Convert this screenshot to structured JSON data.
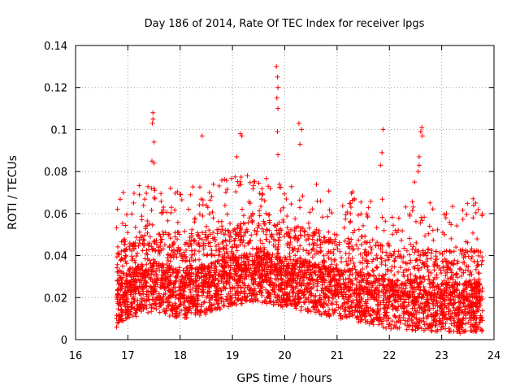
{
  "chart_data": {
    "type": "scatter",
    "title": "Day 186 of 2014, Rate Of TEC Index for receiver lpgs",
    "xlabel": "GPS time / hours",
    "ylabel": "ROTI / TECUs",
    "xlim": [
      16,
      24
    ],
    "ylim": [
      0,
      0.14
    ],
    "xticks": [
      16,
      17,
      18,
      19,
      20,
      21,
      22,
      23,
      24
    ],
    "yticks": [
      0,
      0.02,
      0.04,
      0.06,
      0.08,
      0.1,
      0.12,
      0.14
    ],
    "xtick_labels": [
      "16",
      "17",
      "18",
      "19",
      "20",
      "21",
      "22",
      "23",
      "24"
    ],
    "ytick_labels": [
      "0",
      "0.02",
      "0.04",
      "0.06",
      "0.08",
      "0.1",
      "0.12",
      "0.14"
    ],
    "grid": true,
    "marker": "+",
    "color": "#ff0000",
    "time_range": [
      16.78,
      23.78
    ],
    "baseline_envelope": [
      [
        16.8,
        0.018
      ],
      [
        17.0,
        0.022
      ],
      [
        17.5,
        0.025
      ],
      [
        18.0,
        0.022
      ],
      [
        18.5,
        0.024
      ],
      [
        19.0,
        0.028
      ],
      [
        19.5,
        0.03
      ],
      [
        20.0,
        0.027
      ],
      [
        20.5,
        0.025
      ],
      [
        21.0,
        0.022
      ],
      [
        21.5,
        0.02
      ],
      [
        22.0,
        0.017
      ],
      [
        22.5,
        0.016
      ],
      [
        23.0,
        0.015
      ],
      [
        23.5,
        0.015
      ],
      [
        23.78,
        0.015
      ]
    ],
    "peak_points": [
      {
        "x": 17.48,
        "y": 0.108
      },
      {
        "x": 17.48,
        "y": 0.105
      },
      {
        "x": 17.47,
        "y": 0.103
      },
      {
        "x": 17.5,
        "y": 0.094
      },
      {
        "x": 17.46,
        "y": 0.085
      },
      {
        "x": 17.5,
        "y": 0.084
      },
      {
        "x": 17.45,
        "y": 0.072
      },
      {
        "x": 17.5,
        "y": 0.072
      },
      {
        "x": 18.42,
        "y": 0.097
      },
      {
        "x": 19.15,
        "y": 0.098
      },
      {
        "x": 19.18,
        "y": 0.097
      },
      {
        "x": 19.08,
        "y": 0.087
      },
      {
        "x": 19.84,
        "y": 0.13
      },
      {
        "x": 19.86,
        "y": 0.125
      },
      {
        "x": 19.87,
        "y": 0.12
      },
      {
        "x": 19.85,
        "y": 0.115
      },
      {
        "x": 19.87,
        "y": 0.11
      },
      {
        "x": 19.86,
        "y": 0.099
      },
      {
        "x": 19.87,
        "y": 0.088
      },
      {
        "x": 20.27,
        "y": 0.103
      },
      {
        "x": 20.32,
        "y": 0.1
      },
      {
        "x": 20.29,
        "y": 0.093
      },
      {
        "x": 21.88,
        "y": 0.1
      },
      {
        "x": 21.86,
        "y": 0.089
      },
      {
        "x": 21.83,
        "y": 0.083
      },
      {
        "x": 22.62,
        "y": 0.101
      },
      {
        "x": 22.6,
        "y": 0.099
      },
      {
        "x": 22.63,
        "y": 0.097
      },
      {
        "x": 22.57,
        "y": 0.087
      },
      {
        "x": 22.57,
        "y": 0.083
      },
      {
        "x": 22.55,
        "y": 0.08
      },
      {
        "x": 22.48,
        "y": 0.075
      },
      {
        "x": 23.6,
        "y": 0.067
      },
      {
        "x": 23.65,
        "y": 0.065
      },
      {
        "x": 23.7,
        "y": 0.062
      },
      {
        "x": 23.6,
        "y": 0.058
      },
      {
        "x": 23.32,
        "y": 0.005
      },
      {
        "x": 23.35,
        "y": 0.003
      }
    ],
    "point_count": 4200
  }
}
